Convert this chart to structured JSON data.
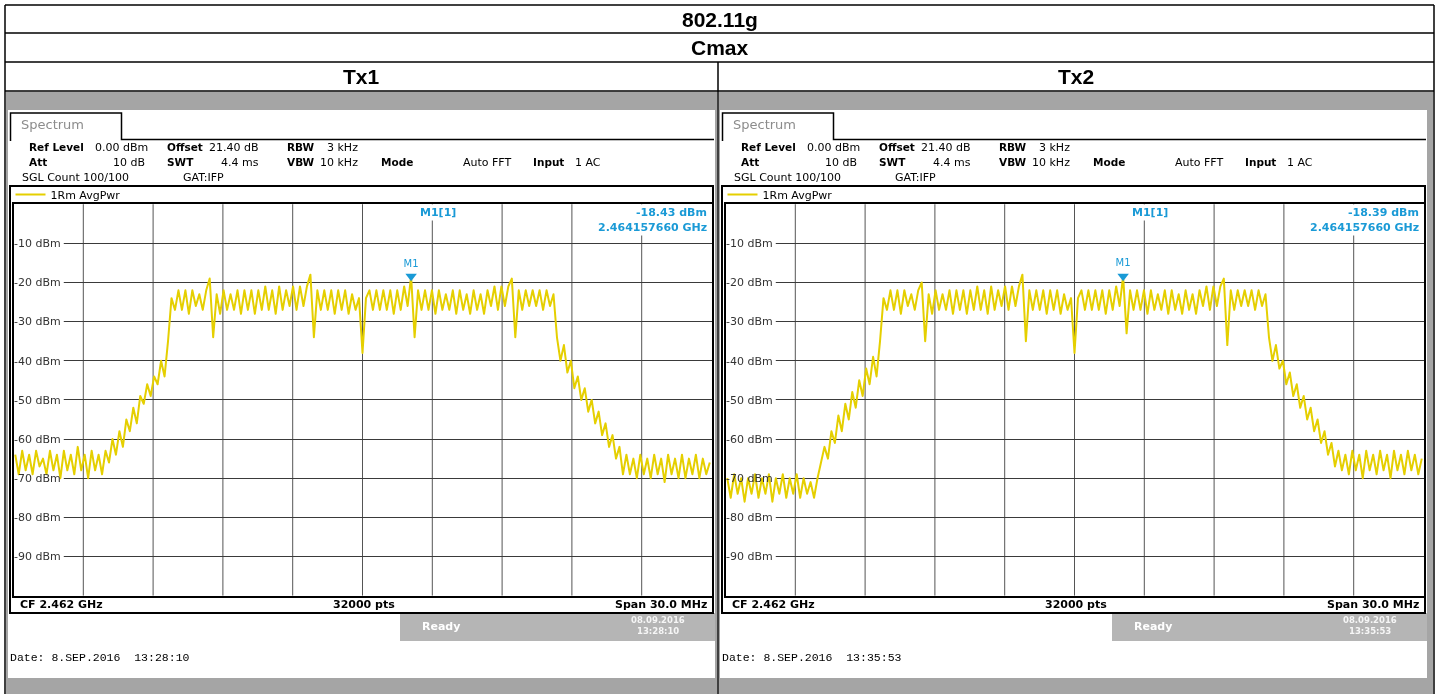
{
  "chart_data": [
    {
      "type": "other",
      "title": "802.11g",
      "subtitle": "Cmax"
    },
    {
      "type": "line",
      "title": "Tx1",
      "categories": [
        null,
        null,
        null,
        null,
        null,
        null,
        null,
        null,
        null,
        null,
        null,
        null,
        null,
        null,
        null,
        null,
        null,
        null,
        null,
        null,
        null,
        null,
        null,
        null,
        null,
        null,
        null,
        null,
        null,
        null,
        null,
        null,
        null,
        null,
        null,
        null,
        null,
        null,
        null,
        null,
        null,
        null,
        null,
        null,
        null,
        null,
        null,
        null,
        null,
        null,
        null,
        null,
        null,
        null,
        null,
        null,
        null,
        null,
        null,
        null,
        null,
        null,
        null,
        null,
        null,
        null,
        null,
        null,
        null,
        null,
        null,
        null,
        null,
        null,
        null,
        null,
        null,
        null,
        null,
        null,
        null,
        null,
        null,
        null,
        null,
        null,
        null,
        null,
        null,
        null,
        null,
        null,
        null,
        null,
        null,
        null,
        null,
        null,
        null,
        null,
        null,
        null,
        null,
        null,
        null,
        null,
        null,
        null,
        null,
        null,
        null,
        null,
        null,
        null,
        null,
        null,
        null,
        null,
        null,
        null,
        null,
        null,
        null,
        null,
        null,
        null,
        null,
        null,
        null,
        null,
        null,
        null,
        null,
        null,
        null,
        null,
        null,
        null,
        null,
        null,
        null,
        null,
        null,
        null,
        null,
        null,
        null,
        null,
        null,
        null,
        null,
        null,
        null,
        null,
        null,
        null,
        null,
        null,
        null,
        null,
        null,
        null,
        null,
        null,
        null,
        null,
        null,
        null,
        null,
        null,
        null,
        null,
        null,
        null,
        null,
        null,
        null,
        null,
        null,
        null,
        null,
        null,
        null,
        null,
        null,
        null,
        null,
        null,
        null,
        null,
        null,
        null,
        null,
        null,
        null,
        null,
        null,
        null,
        null,
        null,
        null
      ],
      "ylim": [
        -100,
        0
      ],
      "yticks": [
        {
          "value": -10,
          "label": "-10 dBm"
        },
        {
          "value": -20,
          "label": "-20 dBm"
        },
        {
          "value": -30,
          "label": "-30 dBm"
        },
        {
          "value": -40,
          "label": "-40 dBm"
        },
        {
          "value": -50,
          "label": "-50 dBm"
        },
        {
          "value": -60,
          "label": "-60 dBm"
        },
        {
          "value": -70,
          "label": "-70 dBm"
        },
        {
          "value": -80,
          "label": "-80 dBm"
        },
        {
          "value": -90,
          "label": "-90 dBm"
        }
      ],
      "tick_labels": "y",
      "grid": true,
      "legend": "top left",
      "series": [
        {
          "name": "1Rm AvgPwr",
          "color": "#e5cf00",
          "values": [
            -64,
            -69,
            -63,
            -68,
            -64,
            -69,
            -63,
            -67,
            -65,
            -69,
            -63,
            -68,
            -64,
            -70,
            -63,
            -68,
            -64,
            -69,
            -62,
            -68,
            -64,
            -70,
            -63,
            -68,
            -64,
            -69,
            -63,
            -66,
            -60,
            -64,
            -58,
            -62,
            -55,
            -58,
            -52,
            -56,
            -49,
            -51,
            -46,
            -49,
            -44,
            -46,
            -40,
            -44,
            -35,
            -24,
            -27,
            -22,
            -27,
            -22,
            -28,
            -22,
            -26,
            -23,
            -27,
            -22,
            -19,
            -34,
            -23,
            -28,
            -22,
            -27,
            -23,
            -27,
            -22,
            -28,
            -22,
            -27,
            -22,
            -28,
            -22,
            -27,
            -21,
            -27,
            -22,
            -28,
            -21,
            -27,
            -22,
            -26,
            -21,
            -27,
            -21,
            -26,
            -21,
            -18,
            -34,
            -22,
            -27,
            -22,
            -27,
            -22,
            -28,
            -22,
            -27,
            -22,
            -28,
            -23,
            -27,
            -24,
            -38,
            -24,
            -22,
            -27,
            -22,
            -27,
            -22,
            -27,
            -22,
            -28,
            -22,
            -27,
            -21,
            -26,
            -18.43,
            -34,
            -22,
            -27,
            -22,
            -27,
            -22,
            -28,
            -22,
            -27,
            -23,
            -27,
            -22,
            -28,
            -22,
            -27,
            -23,
            -28,
            -22,
            -27,
            -23,
            -28,
            -22,
            -26,
            -21,
            -27,
            -21,
            -26,
            -21,
            -19,
            -34,
            -22,
            -27,
            -22,
            -26,
            -22,
            -26,
            -22,
            -27,
            -22,
            -26,
            -23,
            -34,
            -40,
            -36,
            -43,
            -40,
            -47,
            -44,
            -50,
            -47,
            -53,
            -50,
            -56,
            -53,
            -59,
            -56,
            -62,
            -59,
            -65,
            -62,
            -69,
            -64,
            -69,
            -65,
            -70,
            -64,
            -69,
            -65,
            -70,
            -64,
            -69,
            -65,
            -71,
            -64,
            -69,
            -65,
            -70,
            -64,
            -70,
            -65,
            -69,
            -64,
            -70,
            -65,
            -69,
            -66
          ]
        },
        {
          "name": "M1",
          "type": "scatter",
          "color": "#1a9ad6",
          "marker": "triangle",
          "values": [
            null,
            null,
            null,
            null,
            null,
            null,
            null,
            null,
            null,
            null,
            null,
            null,
            null,
            null,
            null,
            null,
            null,
            null,
            null,
            null,
            null,
            null,
            null,
            null,
            null,
            null,
            null,
            null,
            null,
            null,
            null,
            null,
            null,
            null,
            null,
            null,
            null,
            null,
            null,
            null,
            null,
            null,
            null,
            null,
            null,
            null,
            null,
            null,
            null,
            null,
            null,
            null,
            null,
            null,
            null,
            null,
            null,
            null,
            null,
            null,
            null,
            null,
            null,
            null,
            null,
            null,
            null,
            null,
            null,
            null,
            null,
            null,
            null,
            null,
            null,
            null,
            null,
            null,
            null,
            null,
            null,
            null,
            null,
            null,
            null,
            null,
            null,
            null,
            null,
            null,
            null,
            null,
            null,
            null,
            null,
            null,
            null,
            null,
            null,
            null,
            null,
            null,
            null,
            null,
            null,
            null,
            null,
            null,
            null,
            null,
            null,
            null,
            null,
            null,
            -18.43,
            null,
            null,
            null,
            null,
            null,
            null,
            null,
            null,
            null,
            null,
            null,
            null,
            null,
            null,
            null,
            null,
            null,
            null,
            null,
            null,
            null,
            null,
            null,
            null,
            null,
            null,
            null,
            null,
            null,
            null,
            null,
            null,
            null,
            null,
            null,
            null,
            null,
            null,
            null,
            null,
            null,
            null,
            null,
            null,
            null,
            null,
            null,
            null,
            null,
            null,
            null,
            null,
            null,
            null,
            null,
            null,
            null,
            null,
            null,
            null,
            null,
            null,
            null,
            null,
            null,
            null,
            null,
            null,
            null,
            null,
            null,
            null,
            null,
            null,
            null,
            null,
            null,
            null,
            null,
            null,
            null,
            null,
            null,
            null,
            null,
            null
          ]
        }
      ],
      "annotations": [
        "Spectrum",
        "Ref Level",
        "0.00 dBm",
        "Offset",
        "21.40 dB",
        "RBW",
        "3 kHz",
        "Att",
        "10 dB",
        "SWT",
        "4.4 ms",
        "VBW",
        "10 kHz",
        "Mode",
        "Auto FFT",
        "Input",
        "1 AC",
        "SGL Count 100/100",
        "GAT:IFP",
        "M1[1]",
        "-18.43 dBm",
        "2.464157660 GHz",
        "CF 2.462 GHz",
        "32000 pts",
        "Span 30.0 MHz",
        "Ready",
        "08.09.2016",
        "13:28:10",
        "Date: 8.SEP.2016  13:28:10"
      ]
    },
    {
      "type": "line",
      "title": "Tx2",
      "categories": [
        null,
        null,
        null,
        null,
        null,
        null,
        null,
        null,
        null,
        null,
        null,
        null,
        null,
        null,
        null,
        null,
        null,
        null,
        null,
        null,
        null,
        null,
        null,
        null,
        null,
        null,
        null,
        null,
        null,
        null,
        null,
        null,
        null,
        null,
        null,
        null,
        null,
        null,
        null,
        null,
        null,
        null,
        null,
        null,
        null,
        null,
        null,
        null,
        null,
        null,
        null,
        null,
        null,
        null,
        null,
        null,
        null,
        null,
        null,
        null,
        null,
        null,
        null,
        null,
        null,
        null,
        null,
        null,
        null,
        null,
        null,
        null,
        null,
        null,
        null,
        null,
        null,
        null,
        null,
        null,
        null,
        null,
        null,
        null,
        null,
        null,
        null,
        null,
        null,
        null,
        null,
        null,
        null,
        null,
        null,
        null,
        null,
        null,
        null,
        null,
        null,
        null,
        null,
        null,
        null,
        null,
        null,
        null,
        null,
        null,
        null,
        null,
        null,
        null,
        null,
        null,
        null,
        null,
        null,
        null,
        null,
        null,
        null,
        null,
        null,
        null,
        null,
        null,
        null,
        null,
        null,
        null,
        null,
        null,
        null,
        null,
        null,
        null,
        null,
        null,
        null,
        null,
        null,
        null,
        null,
        null,
        null,
        null,
        null,
        null,
        null,
        null,
        null,
        null,
        null,
        null,
        null,
        null,
        null,
        null,
        null,
        null,
        null,
        null,
        null,
        null,
        null,
        null,
        null,
        null,
        null,
        null,
        null,
        null,
        null,
        null,
        null,
        null,
        null,
        null,
        null,
        null,
        null,
        null,
        null,
        null,
        null,
        null,
        null,
        null,
        null,
        null,
        null,
        null,
        null,
        null,
        null,
        null,
        null,
        null,
        null
      ],
      "ylim": [
        -100,
        0
      ],
      "yticks": [
        {
          "value": -10,
          "label": "-10 dBm"
        },
        {
          "value": -20,
          "label": "-20 dBm"
        },
        {
          "value": -30,
          "label": "-30 dBm"
        },
        {
          "value": -40,
          "label": "-40 dBm"
        },
        {
          "value": -50,
          "label": "-50 dBm"
        },
        {
          "value": -60,
          "label": "-60 dBm"
        },
        {
          "value": -70,
          "label": "-70 dBm"
        },
        {
          "value": -80,
          "label": "-80 dBm"
        },
        {
          "value": -90,
          "label": "-90 dBm"
        }
      ],
      "tick_labels": "y",
      "grid": true,
      "legend": "top left",
      "series": [
        {
          "name": "1Rm AvgPwr",
          "color": "#e5cf00",
          "values": [
            -70,
            -75,
            -69,
            -74,
            -70,
            -76,
            -70,
            -74,
            -69,
            -75,
            -70,
            -74,
            -69,
            -76,
            -70,
            -74,
            -69,
            -75,
            -70,
            -74,
            -69,
            -75,
            -70,
            -74,
            -71,
            -75,
            -70,
            -66,
            -62,
            -65,
            -58,
            -61,
            -54,
            -58,
            -51,
            -55,
            -48,
            -52,
            -45,
            -49,
            -42,
            -46,
            -39,
            -44,
            -35,
            -24,
            -27,
            -22,
            -27,
            -22,
            -28,
            -22,
            -26,
            -23,
            -27,
            -22,
            -20,
            -35,
            -23,
            -28,
            -22,
            -27,
            -23,
            -27,
            -22,
            -28,
            -22,
            -27,
            -22,
            -28,
            -22,
            -27,
            -21,
            -27,
            -22,
            -28,
            -21,
            -27,
            -22,
            -26,
            -21,
            -27,
            -21,
            -26,
            -21,
            -18,
            -35,
            -22,
            -27,
            -22,
            -27,
            -22,
            -28,
            -22,
            -27,
            -22,
            -28,
            -23,
            -27,
            -24,
            -38,
            -24,
            -22,
            -27,
            -22,
            -27,
            -22,
            -27,
            -22,
            -28,
            -22,
            -27,
            -21,
            -26,
            -18.39,
            -33,
            -22,
            -27,
            -22,
            -27,
            -22,
            -28,
            -22,
            -27,
            -23,
            -27,
            -22,
            -28,
            -22,
            -27,
            -23,
            -28,
            -22,
            -27,
            -23,
            -28,
            -22,
            -26,
            -21,
            -27,
            -21,
            -26,
            -21,
            -19,
            -36,
            -22,
            -27,
            -22,
            -26,
            -22,
            -26,
            -22,
            -27,
            -22,
            -26,
            -23,
            -34,
            -40,
            -36,
            -42,
            -40,
            -46,
            -43,
            -49,
            -46,
            -52,
            -49,
            -55,
            -52,
            -58,
            -55,
            -61,
            -58,
            -64,
            -61,
            -67,
            -63,
            -68,
            -64,
            -69,
            -63,
            -68,
            -64,
            -70,
            -63,
            -68,
            -64,
            -69,
            -63,
            -68,
            -64,
            -70,
            -63,
            -68,
            -64,
            -69,
            -63,
            -68,
            -64,
            -69,
            -65
          ]
        },
        {
          "name": "M1",
          "type": "scatter",
          "color": "#1a9ad6",
          "marker": "triangle",
          "values": [
            null,
            null,
            null,
            null,
            null,
            null,
            null,
            null,
            null,
            null,
            null,
            null,
            null,
            null,
            null,
            null,
            null,
            null,
            null,
            null,
            null,
            null,
            null,
            null,
            null,
            null,
            null,
            null,
            null,
            null,
            null,
            null,
            null,
            null,
            null,
            null,
            null,
            null,
            null,
            null,
            null,
            null,
            null,
            null,
            null,
            null,
            null,
            null,
            null,
            null,
            null,
            null,
            null,
            null,
            null,
            null,
            null,
            null,
            null,
            null,
            null,
            null,
            null,
            null,
            null,
            null,
            null,
            null,
            null,
            null,
            null,
            null,
            null,
            null,
            null,
            null,
            null,
            null,
            null,
            null,
            null,
            null,
            null,
            null,
            null,
            null,
            null,
            null,
            null,
            null,
            null,
            null,
            null,
            null,
            null,
            null,
            null,
            null,
            null,
            null,
            null,
            null,
            null,
            null,
            null,
            null,
            null,
            null,
            null,
            null,
            null,
            null,
            null,
            null,
            -18.39,
            null,
            null,
            null,
            null,
            null,
            null,
            null,
            null,
            null,
            null,
            null,
            null,
            null,
            null,
            null,
            null,
            null,
            null,
            null,
            null,
            null,
            null,
            null,
            null,
            null,
            null,
            null,
            null,
            null,
            null,
            null,
            null,
            null,
            null,
            null,
            null,
            null,
            null,
            null,
            null,
            null,
            null,
            null,
            null,
            null,
            null,
            null,
            null,
            null,
            null,
            null,
            null,
            null,
            null,
            null,
            null,
            null,
            null,
            null,
            null,
            null,
            null,
            null,
            null,
            null,
            null,
            null,
            null,
            null,
            null,
            null,
            null,
            null,
            null,
            null,
            null,
            null,
            null,
            null,
            null,
            null,
            null,
            null,
            null,
            null,
            null
          ]
        }
      ],
      "annotations": [
        "Spectrum",
        "Ref Level",
        "0.00 dBm",
        "Offset",
        "21.40 dB",
        "RBW",
        "3 kHz",
        "Att",
        "10 dB",
        "SWT",
        "4.4 ms",
        "VBW",
        "10 kHz",
        "Mode",
        "Auto FFT",
        "Input",
        "1 AC",
        "SGL Count 100/100",
        "GAT:IFP",
        "M1[1]",
        "-18.39 dBm",
        "2.464157660 GHz",
        "CF 2.462 GHz",
        "32000 pts",
        "Span 30.0 MHz",
        "Ready",
        "08.09.2016",
        "13:35:53",
        "Date: 8.SEP.2016  13:35:53"
      ]
    }
  ]
}
